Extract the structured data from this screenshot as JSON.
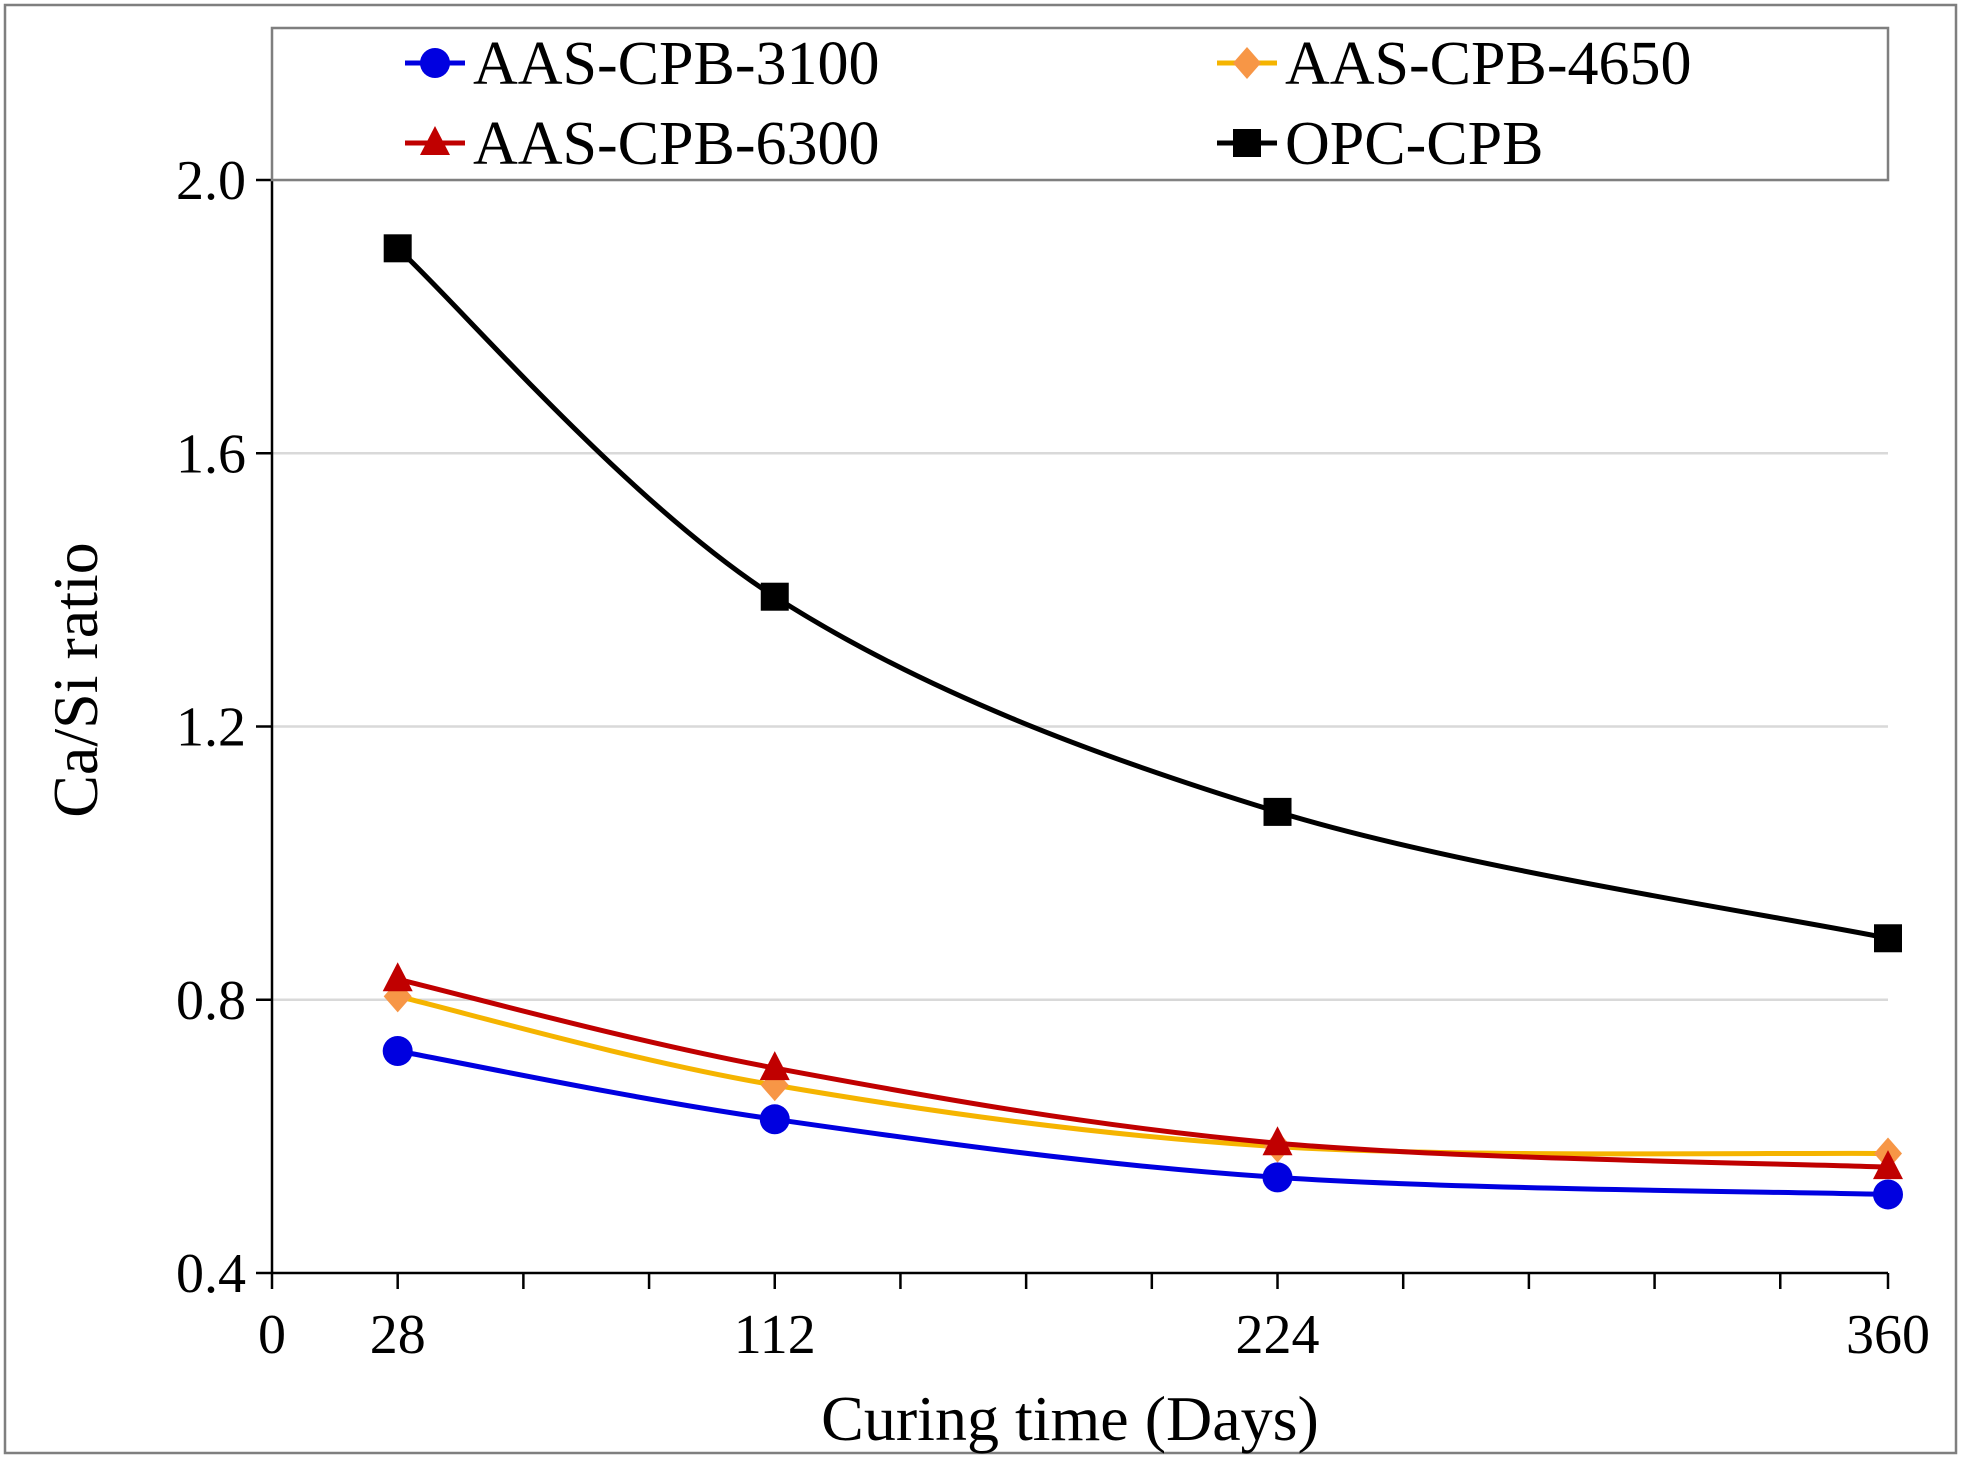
{
  "chart_data": {
    "type": "line",
    "title": "",
    "xlabel": "Curing time (Days)",
    "ylabel": "Ca/Si ratio",
    "x": [
      28,
      112,
      224,
      360
    ],
    "xlim": [
      0,
      360
    ],
    "ylim": [
      0.4,
      2.0
    ],
    "x_ticks": [
      {
        "value": 0,
        "label": "0"
      },
      {
        "value": 28,
        "label": "28"
      },
      {
        "value": 112,
        "label": "112"
      },
      {
        "value": 224,
        "label": "224"
      },
      {
        "value": 360,
        "label": "360"
      }
    ],
    "x_minor_ticks": [
      28,
      56,
      84,
      112,
      140,
      168,
      196,
      224,
      252,
      280,
      308,
      336,
      360
    ],
    "y_ticks": [
      {
        "value": 0.4,
        "label": "0.4"
      },
      {
        "value": 0.8,
        "label": "0.8"
      },
      {
        "value": 1.2,
        "label": "1.2"
      },
      {
        "value": 1.6,
        "label": "1.6"
      },
      {
        "value": 2.0,
        "label": "2.0"
      }
    ],
    "grid": true,
    "legend_position": "top",
    "series": [
      {
        "name": "AAS-CPB-3100",
        "values": [
          0.725,
          0.625,
          0.54,
          0.515
        ],
        "color": "#0000e0",
        "marker": "circle"
      },
      {
        "name": "AAS-CPB-4650",
        "values": [
          0.805,
          0.675,
          0.585,
          0.575
        ],
        "color": "#f5b400",
        "marker_color": "#f79646",
        "marker": "diamond"
      },
      {
        "name": "AAS-CPB-6300",
        "values": [
          0.83,
          0.7,
          0.59,
          0.555
        ],
        "color": "#c00000",
        "marker": "triangle"
      },
      {
        "name": "OPC-CPB",
        "values": [
          1.9,
          1.39,
          1.075,
          0.89
        ],
        "color": "#000000",
        "marker": "square"
      }
    ]
  }
}
